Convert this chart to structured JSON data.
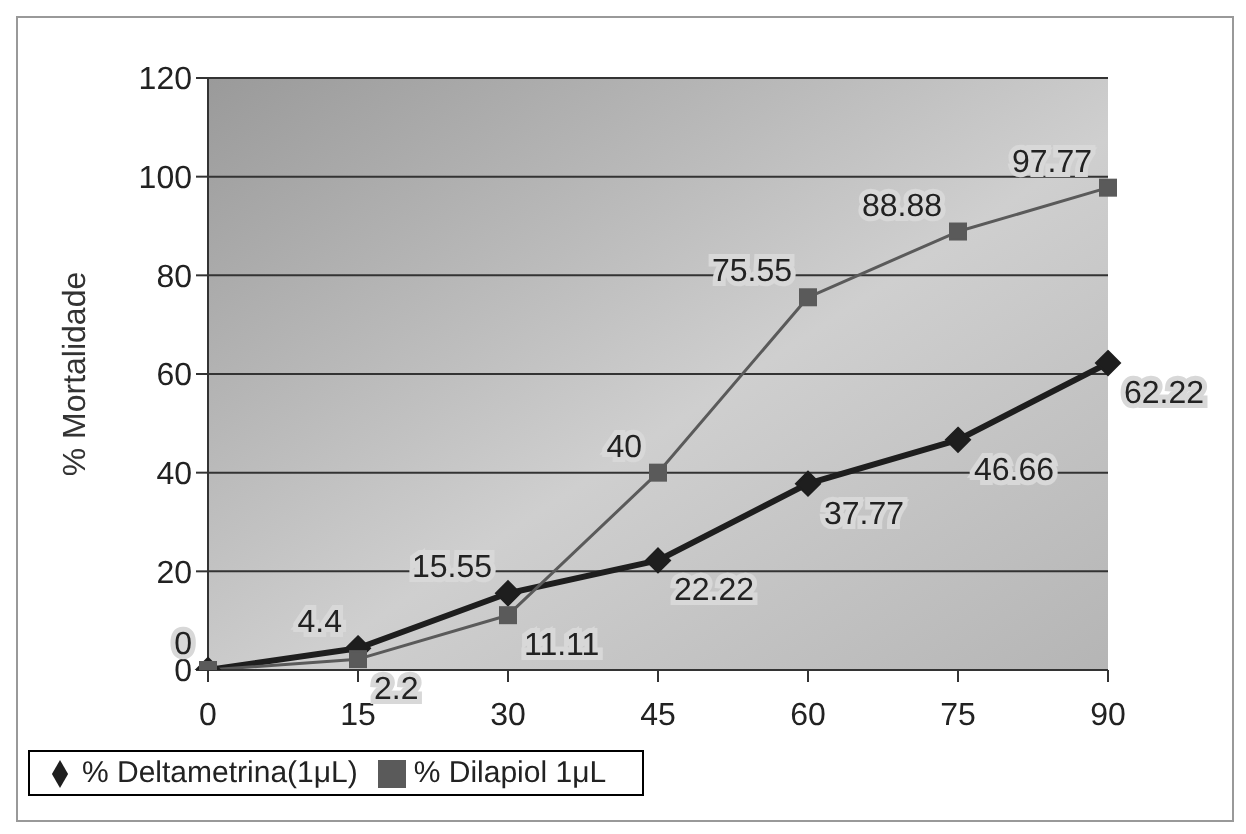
{
  "chart_data": {
    "type": "line",
    "ylabel": "% Mortalidade",
    "categories": [
      "0",
      "15",
      "30",
      "45",
      "60",
      "75",
      "90"
    ],
    "series": [
      {
        "name": "% Deltametrina(1μL)",
        "color": "#1e1e1e",
        "marker": "diamond",
        "values": [
          0,
          4.4,
          15.55,
          22.22,
          37.77,
          46.66,
          62.22
        ],
        "value_labels": [
          "0",
          "4.4",
          "15.55",
          "22.22",
          "37.77",
          "46.66",
          "62.22"
        ]
      },
      {
        "name": "% Dilapiol 1μL",
        "color": "#5a5a5a",
        "marker": "square",
        "values": [
          0,
          2.2,
          11.11,
          40,
          75.55,
          88.88,
          97.77
        ],
        "value_labels": [
          null,
          "2.2",
          "11.11",
          "40",
          "75.55",
          "88.88",
          "97.77"
        ]
      }
    ],
    "ylim": [
      0,
      120
    ],
    "yticks": [
      0,
      20,
      40,
      60,
      80,
      100,
      120
    ],
    "grid": "y",
    "legend": "bottom left"
  }
}
